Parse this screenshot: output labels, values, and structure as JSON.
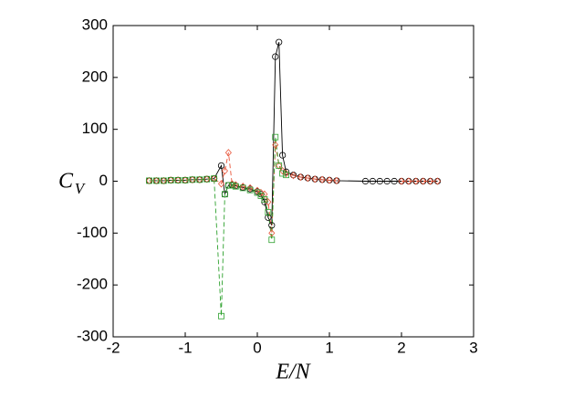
{
  "chart_data": {
    "type": "line",
    "xlabel": "E/N",
    "ylabel": "C",
    "ylabel_subscript": "V",
    "xlim": [
      -2,
      3
    ],
    "xticks": [
      -2,
      -1,
      0,
      1,
      2,
      3
    ],
    "ylim": [
      -300,
      300
    ],
    "yticks": [
      -300,
      -200,
      -100,
      0,
      100,
      200,
      300
    ],
    "x": [
      -1.5,
      -1.4,
      -1.3,
      -1.2,
      -1.1,
      -1.0,
      -0.9,
      -0.8,
      -0.7,
      -0.6,
      -0.5,
      -0.45,
      -0.4,
      -0.35,
      -0.3,
      -0.2,
      -0.1,
      0,
      0.05,
      0.1,
      0.15,
      0.2,
      0.25,
      0.3,
      0.35,
      0.4,
      0.5,
      0.6,
      0.7,
      0.8,
      0.9,
      1.0,
      1.1,
      1.5,
      1.6,
      1.7,
      1.8,
      1.9,
      2.0,
      2.1,
      2.2,
      2.3,
      2.4,
      2.5
    ],
    "series": [
      {
        "color": "#000000",
        "marker": "circle",
        "dashed": false,
        "values": [
          1,
          1,
          1,
          2,
          2,
          2,
          3,
          3,
          4,
          5,
          30,
          -25,
          -8,
          -7,
          -9,
          -12,
          -15,
          -20,
          -25,
          -40,
          -70,
          -85,
          240,
          268,
          50,
          18,
          12,
          8,
          6,
          4,
          3,
          2,
          1,
          0,
          0,
          0,
          0,
          0,
          0,
          0,
          0,
          0,
          0,
          0
        ]
      },
      {
        "color": "#e8553a",
        "marker": "diamond",
        "dashed": true,
        "values": [
          1,
          1,
          1,
          2,
          2,
          2,
          3,
          3,
          4,
          5,
          -5,
          20,
          55,
          -5,
          -7,
          -10,
          -13,
          -18,
          -22,
          -25,
          -40,
          -100,
          70,
          30,
          20,
          15,
          11,
          8,
          6,
          4,
          3,
          2,
          1,
          null,
          null,
          null,
          null,
          null,
          0,
          0,
          0,
          0,
          0,
          0
        ]
      },
      {
        "color": "#2ca02c",
        "marker": "square",
        "dashed": true,
        "values": [
          1,
          1,
          1,
          2,
          2,
          2,
          3,
          3,
          4,
          5,
          -260,
          -25,
          -8,
          -8,
          -10,
          -13,
          -17,
          -22,
          -28,
          -35,
          -60,
          -113,
          85,
          30,
          15,
          12,
          null,
          null,
          null,
          null,
          null,
          null,
          null,
          null,
          null,
          null,
          null,
          null,
          null,
          null,
          null,
          null,
          null,
          null
        ]
      }
    ]
  }
}
